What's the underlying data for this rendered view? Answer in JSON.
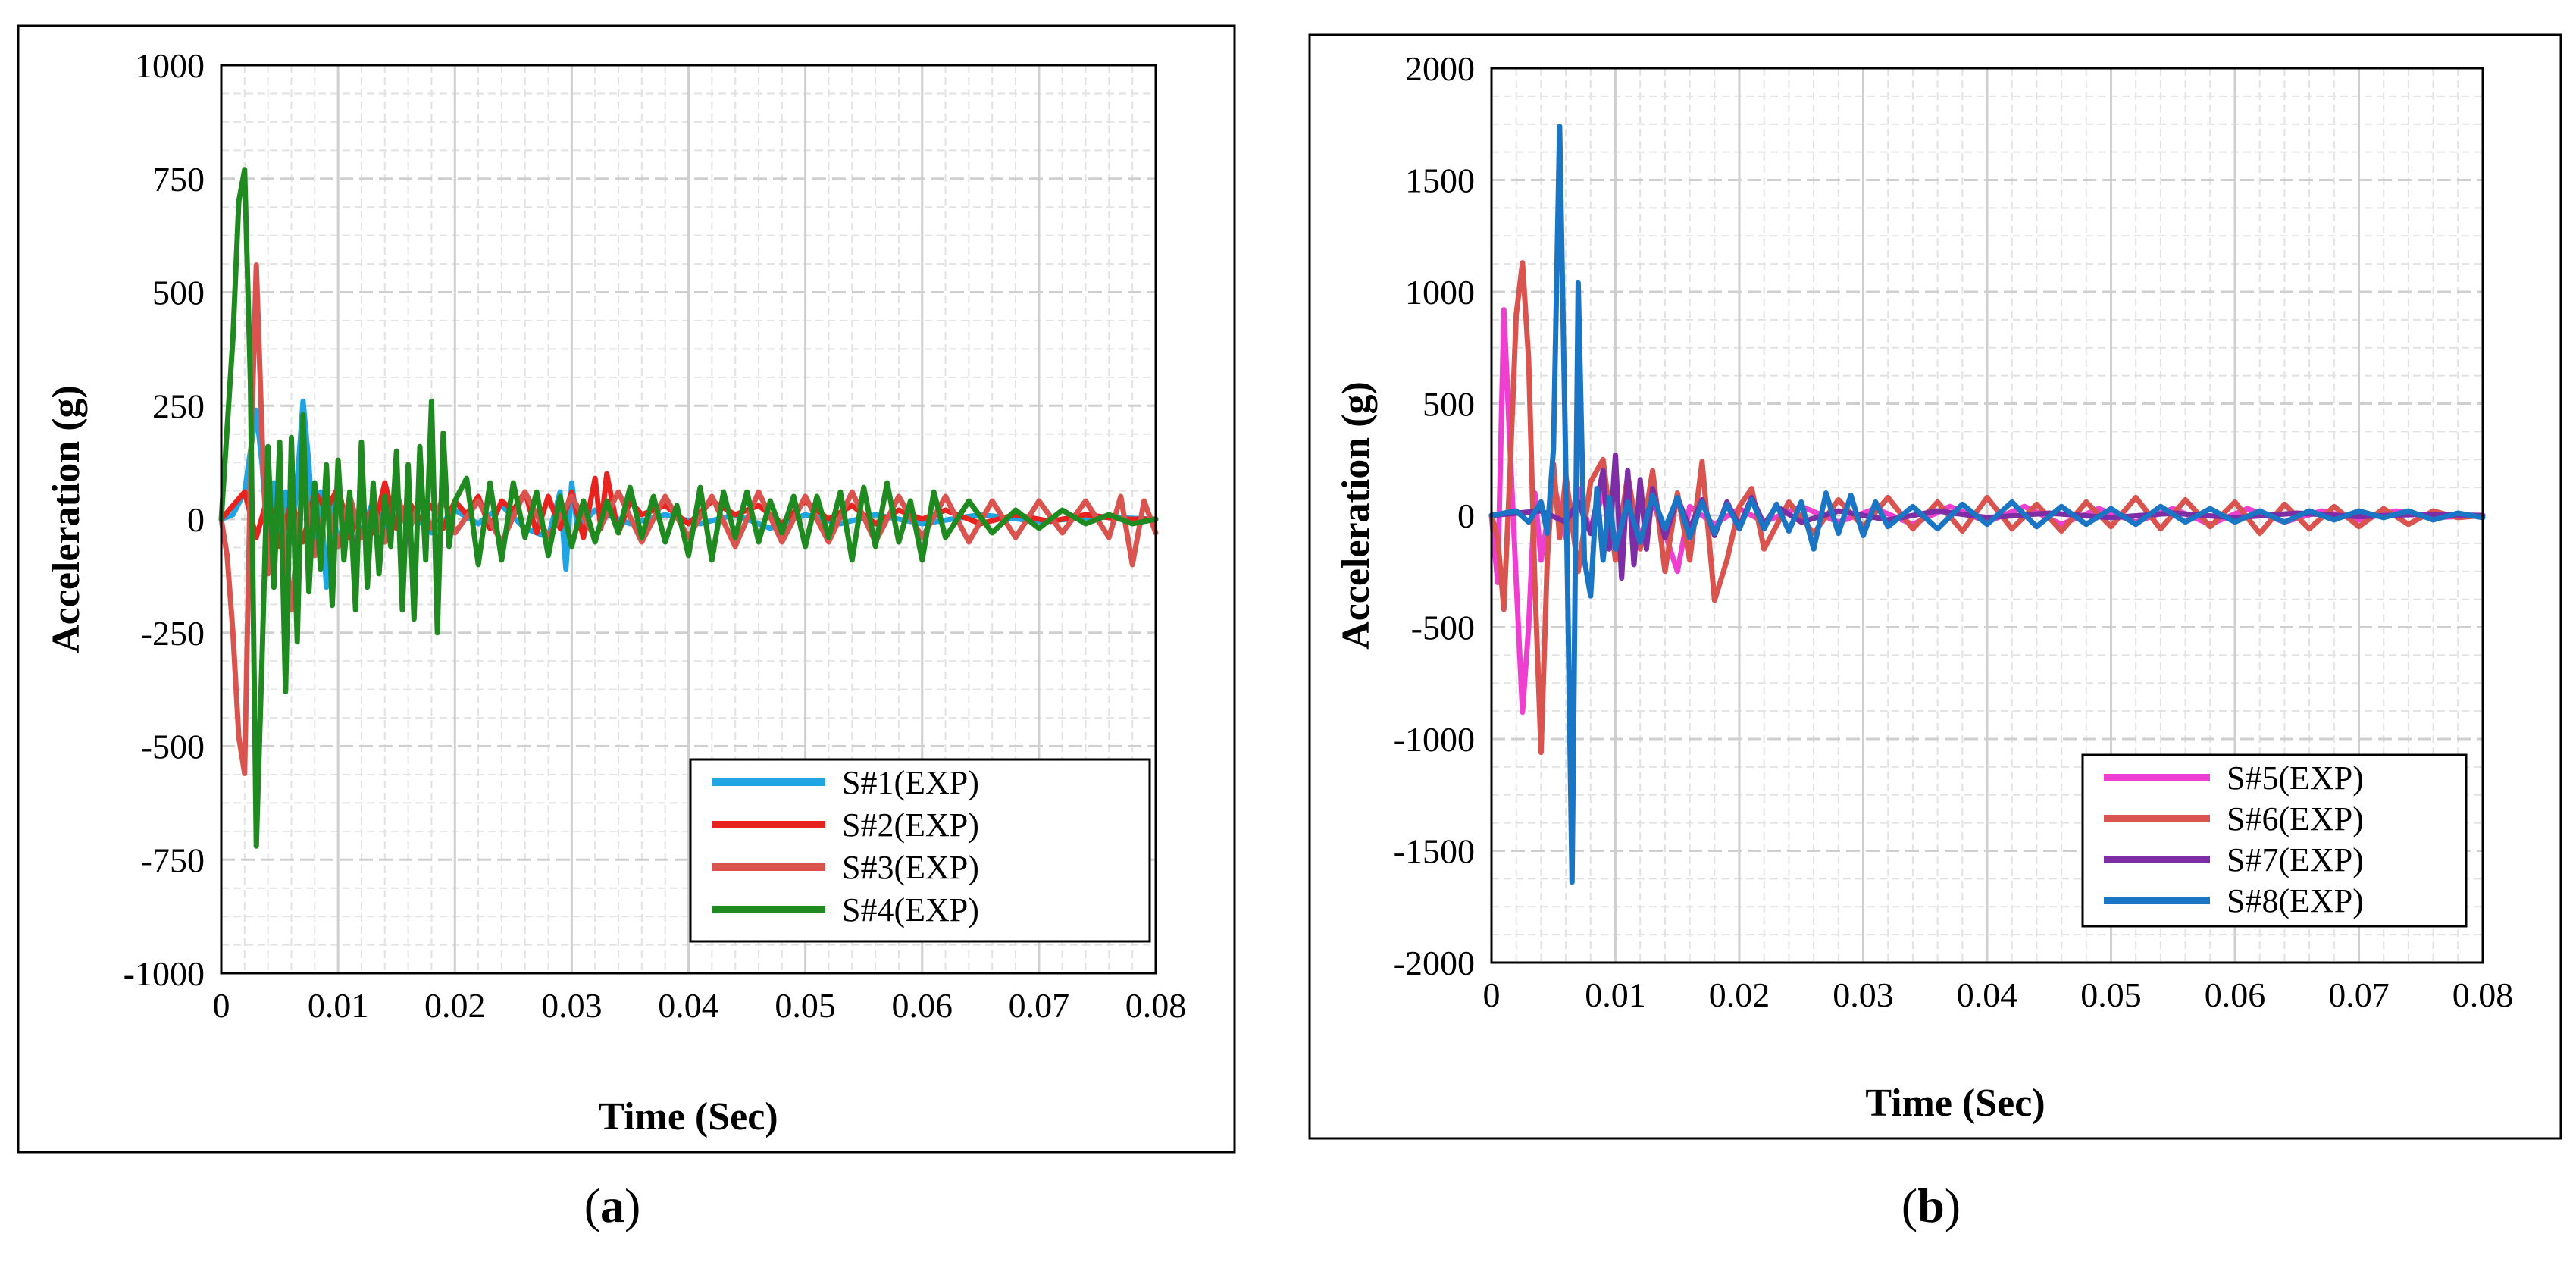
{
  "chart_data": [
    {
      "type": "line",
      "caption_letter": "a",
      "xlabel": "Time (Sec)",
      "ylabel": "Acceleration (g)",
      "xlim": [
        0,
        0.08
      ],
      "ylim": [
        -1000,
        1000
      ],
      "x_ticks": [
        0,
        0.01,
        0.02,
        0.03,
        0.04,
        0.05,
        0.06,
        0.07,
        0.08
      ],
      "x_tick_labels": [
        "0",
        "0.01",
        "0.02",
        "0.03",
        "0.04",
        "0.05",
        "0.06",
        "0.07",
        "0.08"
      ],
      "y_ticks": [
        1000,
        750,
        500,
        250,
        0,
        -250,
        -500,
        -750,
        -1000
      ],
      "y_tick_labels": [
        "1000",
        "750",
        "500",
        "250",
        "0",
        "-250",
        "-500",
        "-750",
        "-1000"
      ],
      "grid": true,
      "legend_position": "bottom-right",
      "series": [
        {
          "name": "S#1(EXP)",
          "color": "#1fa5e3",
          "x": [
            0,
            0.001,
            0.002,
            0.0025,
            0.003,
            0.0035,
            0.004,
            0.0045,
            0.005,
            0.0055,
            0.006,
            0.0065,
            0.007,
            0.0075,
            0.008,
            0.0085,
            0.009,
            0.0095,
            0.01,
            0.011,
            0.012,
            0.013,
            0.014,
            0.016,
            0.018,
            0.02,
            0.022,
            0.024,
            0.026,
            0.028,
            0.029,
            0.0295,
            0.03,
            0.0305,
            0.032,
            0.035,
            0.038,
            0.041,
            0.044,
            0.047,
            0.05,
            0.053,
            0.056,
            0.06,
            0.065,
            0.07,
            0.075,
            0.08
          ],
          "y": [
            0,
            10,
            60,
            150,
            240,
            120,
            -60,
            80,
            -40,
            60,
            -50,
            80,
            260,
            120,
            -80,
            60,
            -150,
            40,
            -60,
            20,
            -30,
            40,
            -20,
            20,
            -30,
            20,
            -10,
            30,
            -20,
            -40,
            60,
            -110,
            80,
            -20,
            20,
            -10,
            10,
            -10,
            10,
            -20,
            10,
            -10,
            10,
            -10,
            10,
            -5,
            5,
            0
          ]
        },
        {
          "name": "S#2(EXP)",
          "color": "#e8231f",
          "x": [
            0,
            0.002,
            0.003,
            0.004,
            0.005,
            0.006,
            0.007,
            0.008,
            0.009,
            0.01,
            0.011,
            0.012,
            0.013,
            0.014,
            0.015,
            0.016,
            0.017,
            0.018,
            0.019,
            0.02,
            0.021,
            0.022,
            0.023,
            0.024,
            0.025,
            0.026,
            0.027,
            0.028,
            0.029,
            0.03,
            0.031,
            0.032,
            0.0325,
            0.033,
            0.034,
            0.035,
            0.036,
            0.038,
            0.04,
            0.042,
            0.044,
            0.046,
            0.048,
            0.05,
            0.052,
            0.054,
            0.056,
            0.058,
            0.06,
            0.062,
            0.065,
            0.068,
            0.071,
            0.074,
            0.077,
            0.08
          ],
          "y": [
            0,
            60,
            -40,
            50,
            -60,
            40,
            -50,
            60,
            20,
            70,
            -40,
            30,
            -30,
            80,
            -20,
            40,
            0,
            30,
            -20,
            40,
            10,
            50,
            -20,
            40,
            20,
            60,
            -30,
            50,
            -20,
            60,
            -40,
            90,
            -20,
            100,
            -30,
            40,
            10,
            30,
            -10,
            40,
            10,
            30,
            -10,
            40,
            0,
            30,
            -10,
            20,
            0,
            20,
            -10,
            10,
            -5,
            10,
            0,
            0
          ]
        },
        {
          "name": "S#3(EXP)",
          "color": "#d9534f",
          "x": [
            0,
            0.0005,
            0.001,
            0.0015,
            0.002,
            0.0025,
            0.003,
            0.0035,
            0.004,
            0.005,
            0.006,
            0.007,
            0.008,
            0.009,
            0.01,
            0.011,
            0.012,
            0.013,
            0.014,
            0.015,
            0.016,
            0.017,
            0.018,
            0.019,
            0.02,
            0.022,
            0.024,
            0.026,
            0.028,
            0.03,
            0.032,
            0.034,
            0.036,
            0.038,
            0.04,
            0.042,
            0.044,
            0.046,
            0.048,
            0.05,
            0.052,
            0.054,
            0.056,
            0.058,
            0.06,
            0.062,
            0.064,
            0.066,
            0.068,
            0.07,
            0.072,
            0.074,
            0.076,
            0.077,
            0.078,
            0.079,
            0.08
          ],
          "y": [
            0,
            -80,
            -250,
            -480,
            -560,
            100,
            560,
            180,
            -120,
            60,
            -200,
            90,
            -80,
            40,
            -60,
            50,
            -40,
            30,
            -50,
            60,
            -30,
            40,
            -20,
            50,
            -30,
            40,
            -50,
            60,
            -40,
            50,
            -40,
            60,
            -50,
            50,
            -40,
            50,
            -60,
            60,
            -50,
            50,
            -50,
            60,
            -50,
            50,
            -40,
            50,
            -50,
            40,
            -40,
            40,
            -30,
            40,
            -40,
            50,
            -100,
            40,
            -30
          ]
        },
        {
          "name": "S#4(EXP)",
          "color": "#1f8a1f",
          "x": [
            0,
            0.001,
            0.0015,
            0.002,
            0.0025,
            0.003,
            0.0035,
            0.004,
            0.0045,
            0.005,
            0.0055,
            0.006,
            0.0065,
            0.007,
            0.0075,
            0.008,
            0.0085,
            0.009,
            0.0095,
            0.01,
            0.0105,
            0.011,
            0.0115,
            0.012,
            0.0125,
            0.013,
            0.0135,
            0.014,
            0.0145,
            0.015,
            0.0155,
            0.016,
            0.0165,
            0.017,
            0.0175,
            0.018,
            0.0185,
            0.019,
            0.0195,
            0.02,
            0.021,
            0.022,
            0.023,
            0.024,
            0.025,
            0.026,
            0.027,
            0.028,
            0.029,
            0.03,
            0.031,
            0.032,
            0.033,
            0.034,
            0.035,
            0.036,
            0.037,
            0.038,
            0.039,
            0.04,
            0.041,
            0.042,
            0.043,
            0.044,
            0.045,
            0.046,
            0.047,
            0.048,
            0.049,
            0.05,
            0.051,
            0.052,
            0.053,
            0.054,
            0.055,
            0.056,
            0.057,
            0.058,
            0.059,
            0.06,
            0.061,
            0.062,
            0.064,
            0.066,
            0.068,
            0.07,
            0.072,
            0.074,
            0.076,
            0.078,
            0.08
          ],
          "y": [
            0,
            400,
            700,
            770,
            300,
            -720,
            -300,
            160,
            -150,
            170,
            -380,
            180,
            -270,
            230,
            -160,
            80,
            -110,
            120,
            -190,
            130,
            -90,
            60,
            -200,
            170,
            -150,
            80,
            -120,
            50,
            -60,
            150,
            -200,
            120,
            -220,
            160,
            -90,
            260,
            -250,
            190,
            -60,
            40,
            90,
            -100,
            80,
            -90,
            80,
            -40,
            60,
            -80,
            50,
            -60,
            40,
            -50,
            40,
            -30,
            70,
            -40,
            50,
            -50,
            30,
            -80,
            70,
            -90,
            60,
            -40,
            60,
            -50,
            40,
            -30,
            50,
            -60,
            50,
            -40,
            60,
            -90,
            70,
            -60,
            80,
            -50,
            40,
            -90,
            60,
            -40,
            40,
            -30,
            20,
            -20,
            20,
            -10,
            10,
            -10,
            0
          ]
        }
      ]
    },
    {
      "type": "line",
      "caption_letter": "b",
      "xlabel": "Time (Sec)",
      "ylabel": "Acceleration (g)",
      "xlim": [
        0,
        0.08
      ],
      "ylim": [
        -2000,
        2000
      ],
      "x_ticks": [
        0,
        0.01,
        0.02,
        0.03,
        0.04,
        0.05,
        0.06,
        0.07,
        0.08
      ],
      "x_tick_labels": [
        "0",
        "0.01",
        "0.02",
        "0.03",
        "0.04",
        "0.05",
        "0.06",
        "0.07",
        "0.08"
      ],
      "y_ticks": [
        2000,
        1500,
        1000,
        500,
        0,
        -500,
        -1000,
        -1500,
        -2000
      ],
      "y_tick_labels": [
        "2000",
        "1500",
        "1000",
        "500",
        "0",
        "-500",
        "-1000",
        "-1500",
        "-2000"
      ],
      "grid": true,
      "legend_position": "bottom-right",
      "series": [
        {
          "name": "S#5(EXP)",
          "color": "#ee3fd0",
          "x": [
            0,
            0.0005,
            0.001,
            0.0015,
            0.002,
            0.0025,
            0.003,
            0.0035,
            0.004,
            0.005,
            0.006,
            0.007,
            0.008,
            0.009,
            0.01,
            0.011,
            0.012,
            0.013,
            0.014,
            0.015,
            0.016,
            0.018,
            0.02,
            0.022,
            0.025,
            0.028,
            0.031,
            0.034,
            0.037,
            0.04,
            0.043,
            0.046,
            0.049,
            0.052,
            0.055,
            0.058,
            0.061,
            0.064,
            0.067,
            0.07,
            0.073,
            0.076,
            0.08
          ],
          "y": [
            0,
            -300,
            920,
            300,
            -300,
            -880,
            -500,
            100,
            -200,
            150,
            -100,
            120,
            -80,
            100,
            -150,
            120,
            -100,
            60,
            -80,
            -250,
            40,
            -40,
            30,
            -30,
            40,
            -30,
            30,
            -40,
            40,
            -30,
            40,
            -40,
            30,
            -30,
            30,
            -40,
            30,
            -30,
            20,
            -20,
            20,
            -10,
            0
          ]
        },
        {
          "name": "S#6(EXP)",
          "color": "#d9534f",
          "x": [
            0,
            0.0005,
            0.001,
            0.0015,
            0.002,
            0.0025,
            0.003,
            0.0035,
            0.004,
            0.0045,
            0.005,
            0.0055,
            0.006,
            0.007,
            0.008,
            0.009,
            0.01,
            0.011,
            0.012,
            0.013,
            0.014,
            0.015,
            0.016,
            0.017,
            0.018,
            0.019,
            0.02,
            0.021,
            0.022,
            0.024,
            0.026,
            0.028,
            0.03,
            0.032,
            0.034,
            0.036,
            0.038,
            0.04,
            0.042,
            0.044,
            0.046,
            0.048,
            0.05,
            0.052,
            0.054,
            0.056,
            0.058,
            0.06,
            0.062,
            0.064,
            0.066,
            0.068,
            0.07,
            0.072,
            0.074,
            0.076,
            0.078,
            0.08
          ],
          "y": [
            0,
            -100,
            -420,
            200,
            900,
            1130,
            700,
            -300,
            -1060,
            -200,
            230,
            -100,
            180,
            -250,
            150,
            250,
            -200,
            180,
            -150,
            200,
            -250,
            100,
            -200,
            240,
            -380,
            -200,
            40,
            120,
            -150,
            60,
            -80,
            70,
            -50,
            80,
            -60,
            60,
            -70,
            80,
            -60,
            50,
            -70,
            60,
            -50,
            80,
            -60,
            70,
            -50,
            60,
            -80,
            50,
            -60,
            40,
            -50,
            30,
            -40,
            20,
            -10,
            0
          ]
        },
        {
          "name": "S#7(EXP)",
          "color": "#7e2ea4",
          "x": [
            0,
            0.004,
            0.006,
            0.007,
            0.008,
            0.009,
            0.0095,
            0.01,
            0.0105,
            0.011,
            0.0115,
            0.012,
            0.0125,
            0.013,
            0.014,
            0.015,
            0.016,
            0.017,
            0.018,
            0.019,
            0.02,
            0.021,
            0.022,
            0.023,
            0.025,
            0.028,
            0.032,
            0.036,
            0.04,
            0.045,
            0.05,
            0.055,
            0.06,
            0.065,
            0.07,
            0.075,
            0.08
          ],
          "y": [
            0,
            20,
            -30,
            60,
            -80,
            200,
            -150,
            270,
            -280,
            200,
            -220,
            160,
            -150,
            120,
            -100,
            80,
            -60,
            70,
            -90,
            60,
            -50,
            80,
            -40,
            40,
            -30,
            20,
            -20,
            20,
            -10,
            10,
            -10,
            10,
            -10,
            10,
            -5,
            5,
            0
          ]
        },
        {
          "name": "S#8(EXP)",
          "color": "#1a75c4",
          "x": [
            0,
            0.002,
            0.003,
            0.004,
            0.0045,
            0.005,
            0.0055,
            0.006,
            0.0065,
            0.007,
            0.0075,
            0.008,
            0.0085,
            0.009,
            0.0095,
            0.01,
            0.011,
            0.012,
            0.013,
            0.014,
            0.015,
            0.016,
            0.017,
            0.018,
            0.019,
            0.02,
            0.021,
            0.022,
            0.023,
            0.024,
            0.025,
            0.026,
            0.027,
            0.028,
            0.029,
            0.03,
            0.031,
            0.032,
            0.034,
            0.036,
            0.038,
            0.04,
            0.042,
            0.044,
            0.046,
            0.048,
            0.05,
            0.052,
            0.054,
            0.056,
            0.058,
            0.06,
            0.062,
            0.064,
            0.066,
            0.068,
            0.07,
            0.072,
            0.074,
            0.076,
            0.078,
            0.08
          ],
          "y": [
            0,
            20,
            -30,
            60,
            -80,
            300,
            1740,
            200,
            -1640,
            1040,
            -200,
            -360,
            120,
            -200,
            80,
            -150,
            60,
            -120,
            90,
            -60,
            80,
            -100,
            60,
            -80,
            50,
            -60,
            70,
            -60,
            50,
            -70,
            60,
            -150,
            100,
            -80,
            90,
            -90,
            60,
            -50,
            40,
            -60,
            50,
            -40,
            60,
            -50,
            40,
            -40,
            30,
            -40,
            40,
            -30,
            30,
            -30,
            20,
            -30,
            20,
            -20,
            20,
            -10,
            20,
            -20,
            10,
            -10
          ]
        }
      ]
    }
  ]
}
